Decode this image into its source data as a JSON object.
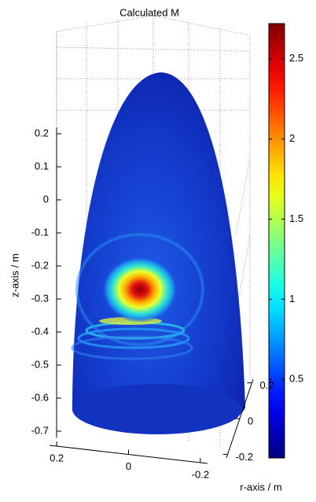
{
  "chart_data": {
    "type": "surface3d",
    "title": "Calculated M",
    "xlabel": "r-axis / m",
    "zlabel": "z-axis / m",
    "xlim": [
      0.22,
      -0.22
    ],
    "xticks": [
      0.2,
      0,
      -0.2
    ],
    "ylim": [
      0.22,
      -0.22
    ],
    "yticks": [
      0.2,
      0,
      -0.2
    ],
    "zlim": [
      -0.72,
      0.22
    ],
    "zticks": [
      0.2,
      0.1,
      0,
      -0.1,
      -0.2,
      -0.3,
      -0.4,
      -0.5,
      -0.6,
      -0.7
    ],
    "colorbar": {
      "colormap": "jet",
      "clim": [
        0.01,
        2.72
      ],
      "ticks": [
        0.5,
        1,
        1.5,
        2,
        2.5
      ]
    }
  }
}
